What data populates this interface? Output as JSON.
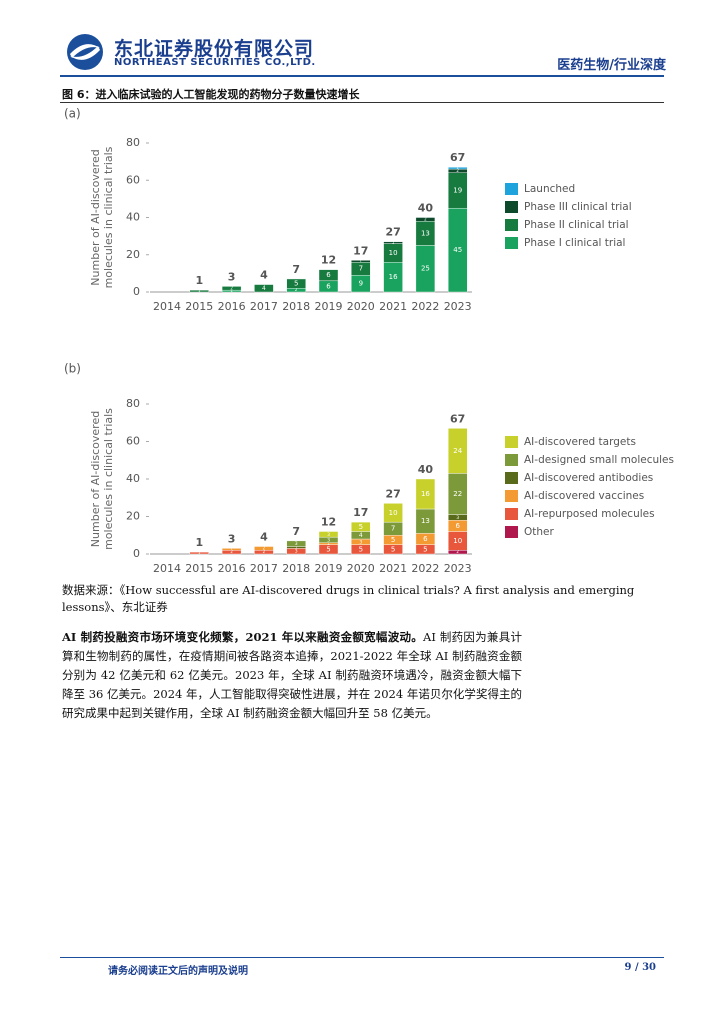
{
  "header": {
    "company_cn": "东北证券股份有限公司",
    "company_en": "NORTHEAST SECURITIES CO.,LTD.",
    "section": "医药生物/行业深度"
  },
  "figure_title": "图 6：进入临床试验的人工智能发现的药物分子数量快速增长",
  "chart_data": [
    {
      "type": "stacked_bar",
      "panel": "(a)",
      "ylabel": [
        "Number of AI-discovered",
        "molecules in clinical trials"
      ],
      "categories": [
        "2014",
        "2015",
        "2016",
        "2017",
        "2018",
        "2019",
        "2020",
        "2021",
        "2022",
        "2023"
      ],
      "totals": [
        null,
        1,
        3,
        4,
        7,
        12,
        17,
        27,
        40,
        67
      ],
      "ylim": [
        0,
        80
      ],
      "yticks": [
        0,
        20,
        40,
        60,
        80
      ],
      "series": [
        {
          "name": "Launched",
          "color": "#1fa3dc",
          "values": [
            0,
            0,
            0,
            0,
            0,
            0,
            0,
            0,
            0,
            1
          ]
        },
        {
          "name": "Phase III clinical trial",
          "color": "#0c4a2b",
          "values": [
            0,
            0,
            0,
            0,
            0,
            0,
            1,
            1,
            2,
            2
          ]
        },
        {
          "name": "Phase II clinical trial",
          "color": "#177a3f",
          "values": [
            0,
            1,
            2,
            4,
            5,
            6,
            7,
            10,
            13,
            19
          ]
        },
        {
          "name": "Phase I clinical trial",
          "color": "#1aa35e",
          "values": [
            0,
            0,
            1,
            0,
            2,
            6,
            9,
            16,
            25,
            45
          ]
        }
      ]
    },
    {
      "type": "stacked_bar",
      "panel": "(b)",
      "ylabel": [
        "Number of AI-discovered",
        "molecules in clinical trials"
      ],
      "categories": [
        "2014",
        "2015",
        "2016",
        "2017",
        "2018",
        "2019",
        "2020",
        "2021",
        "2022",
        "2023"
      ],
      "totals": [
        null,
        1,
        3,
        4,
        7,
        12,
        17,
        27,
        40,
        67
      ],
      "ylim": [
        0,
        80
      ],
      "yticks": [
        0,
        20,
        40,
        60,
        80
      ],
      "series": [
        {
          "name": "AI-discovered targets",
          "color": "#c8d12c",
          "values": [
            0,
            0,
            0,
            0,
            0,
            3,
            5,
            10,
            16,
            24
          ]
        },
        {
          "name": "AI-designed small molecules",
          "color": "#7d9a3b",
          "values": [
            0,
            0,
            0,
            0,
            3,
            3,
            4,
            7,
            13,
            22
          ]
        },
        {
          "name": "AI-discovered antibodies",
          "color": "#5a6a1b",
          "values": [
            0,
            0,
            0,
            0,
            1,
            0,
            0,
            0,
            0,
            3
          ]
        },
        {
          "name": "AI-discovered vaccines",
          "color": "#f39a33",
          "values": [
            0,
            0,
            1,
            2,
            0,
            1,
            3,
            5,
            6,
            6
          ]
        },
        {
          "name": "AI-repurposed molecules",
          "color": "#e8573c",
          "values": [
            0,
            1,
            2,
            2,
            3,
            5,
            5,
            5,
            5,
            10
          ]
        },
        {
          "name": "Other",
          "color": "#b0174d",
          "values": [
            0,
            0,
            0,
            0,
            0,
            0,
            0,
            0,
            0,
            2
          ]
        }
      ]
    }
  ],
  "source": "数据来源：《How successful are AI-discovered drugs in clinical trials? A first analysis and emerging lessons》、东北证券",
  "paragraph": {
    "lead": "AI 制药投融资市场环境变化频繁，2021 年以来融资金额宽幅波动。",
    "body": "AI 制药因为兼具计算和生物制药的属性，在疫情期间被各路资本追捧，2021-2022 年全球 AI 制药融资金额分别为 42 亿美元和 62 亿美元。2023 年，全球 AI 制药融资环境遇冷，融资金额大幅下降至 36 亿美元。2024 年，人工智能取得突破性进展，并在 2024 年诺贝尔化学奖得主的研究成果中起到关键作用，全球 AI 制药融资金额大幅回升至 58 亿美元。"
  },
  "footer": {
    "note": "请务必阅读正文后的声明及说明",
    "page": "9 / 30"
  }
}
